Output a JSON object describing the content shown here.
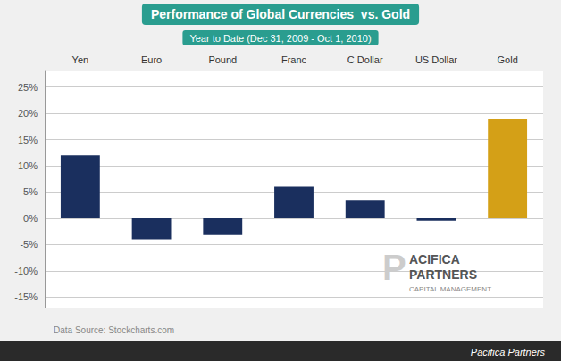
{
  "chart_data": {
    "type": "bar",
    "title": "Performance of Global Currencies  vs. Gold",
    "subtitle": "Year to Date (Dec 31, 2009 - Oct 1, 2010)",
    "annotations": [
      "Data Source: Stockcharts.com",
      "Pacifica Partners",
      "P",
      "ACIFICA",
      "PARTNERS",
      "CAPITAL MANAGEMENT"
    ],
    "categories": [
      "Yen",
      "Euro",
      "Pound",
      "Franc",
      "C Dollar",
      "US Dollar",
      "Gold"
    ],
    "values": [
      12.0,
      -4.0,
      -3.2,
      6.0,
      3.5,
      -0.5,
      19.0
    ],
    "colors": [
      "#1a2f5e",
      "#1a2f5e",
      "#1a2f5e",
      "#1a2f5e",
      "#1a2f5e",
      "#1a2f5e",
      "#d4a017"
    ],
    "ylim": [
      -17,
      28
    ],
    "yticks": [
      {
        "value": -15,
        "label": "-15%"
      },
      {
        "value": -10,
        "label": "-10%"
      },
      {
        "value": -5,
        "label": "-5%"
      },
      {
        "value": 0,
        "label": "0%"
      },
      {
        "value": 5,
        "label": "5%"
      },
      {
        "value": 10,
        "label": "10%"
      },
      {
        "value": 15,
        "label": "15%"
      },
      {
        "value": 20,
        "label": "20%"
      },
      {
        "value": 25,
        "label": "25%"
      }
    ],
    "grid": true
  }
}
